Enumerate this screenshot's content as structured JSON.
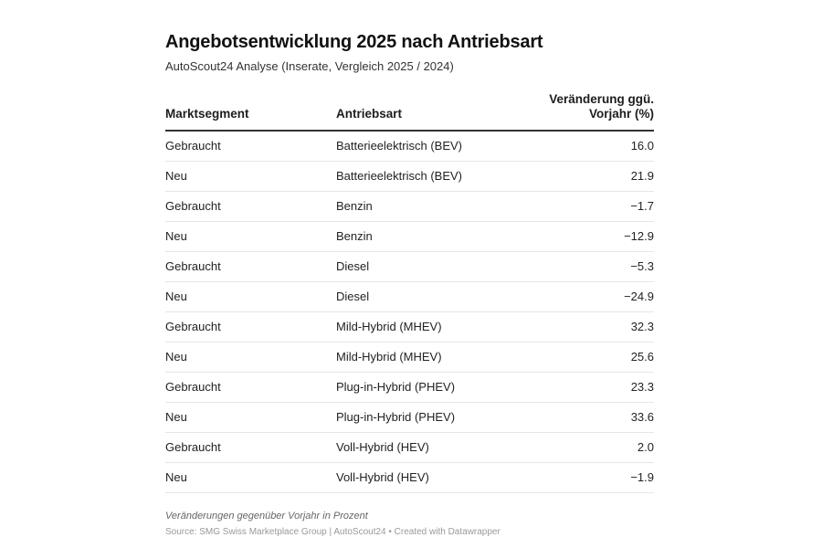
{
  "title": "Angebotsentwicklung 2025 nach Antriebsart",
  "subtitle": "AutoScout24 Analyse (Inserate, Vergleich 2025 / 2024)",
  "notes": "Veränderungen gegenüber Vorjahr in Prozent",
  "source": "Source: SMG Swiss Marketplace Group | AutoScout24 • Created with Datawrapper",
  "chart_data": {
    "type": "table",
    "columns": [
      "Marktsegment",
      "Antriebsart",
      "Veränderung ggü. Vorjahr (%)"
    ],
    "rows": [
      [
        "Gebraucht",
        "Batterieelektrisch (BEV)",
        "16.0"
      ],
      [
        "Neu",
        "Batterieelektrisch (BEV)",
        "21.9"
      ],
      [
        "Gebraucht",
        "Benzin",
        "−1.7"
      ],
      [
        "Neu",
        "Benzin",
        "−12.9"
      ],
      [
        "Gebraucht",
        "Diesel",
        "−5.3"
      ],
      [
        "Neu",
        "Diesel",
        "−24.9"
      ],
      [
        "Gebraucht",
        "Mild-Hybrid (MHEV)",
        "32.3"
      ],
      [
        "Neu",
        "Mild-Hybrid (MHEV)",
        "25.6"
      ],
      [
        "Gebraucht",
        "Plug-in-Hybrid (PHEV)",
        "23.3"
      ],
      [
        "Neu",
        "Plug-in-Hybrid (PHEV)",
        "33.6"
      ],
      [
        "Gebraucht",
        "Voll-Hybrid (HEV)",
        "2.0"
      ],
      [
        "Neu",
        "Voll-Hybrid (HEV)",
        "−1.9"
      ]
    ]
  }
}
